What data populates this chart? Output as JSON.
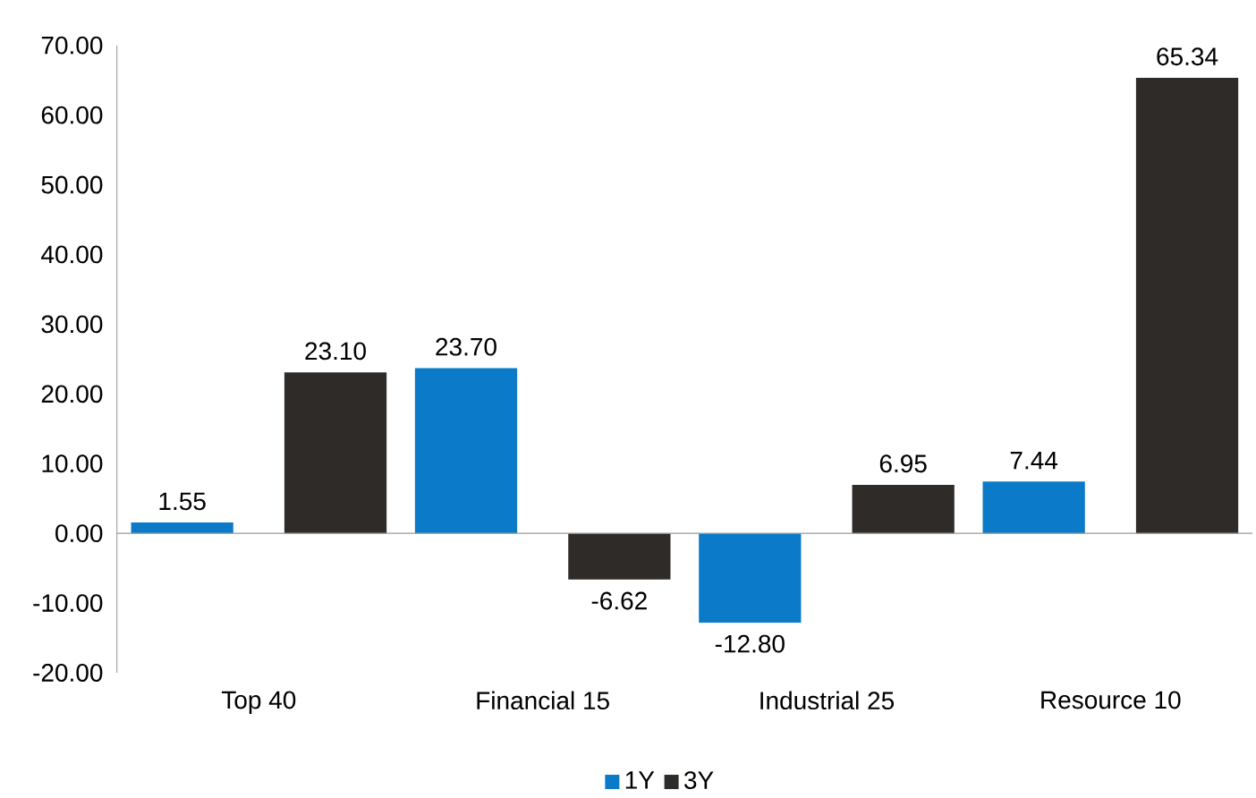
{
  "chart_data": {
    "type": "bar",
    "categories": [
      "Top 40",
      "Financial 15",
      "Industrial 25",
      "Resource 10"
    ],
    "series": [
      {
        "name": "1Y",
        "color": "#0b7ac8",
        "values": [
          1.55,
          23.7,
          -12.8,
          7.44
        ],
        "value_labels": [
          "1.55",
          "23.70",
          "-12.80",
          "7.44"
        ]
      },
      {
        "name": "3Y",
        "color": "#2e2b29",
        "values": [
          23.1,
          -6.62,
          6.95,
          65.34
        ],
        "value_labels": [
          "23.10",
          "-6.62",
          "6.95",
          "65.34"
        ]
      }
    ],
    "ylim": [
      -20,
      70
    ],
    "yticks": [
      {
        "value": -20,
        "label": "-20.00"
      },
      {
        "value": -10,
        "label": "-10.00"
      },
      {
        "value": 0,
        "label": "0.00"
      },
      {
        "value": 10,
        "label": "10.00"
      },
      {
        "value": 20,
        "label": "20.00"
      },
      {
        "value": 30,
        "label": "30.00"
      },
      {
        "value": 40,
        "label": "40.00"
      },
      {
        "value": 50,
        "label": "50.00"
      },
      {
        "value": 60,
        "label": "60.00"
      },
      {
        "value": 70,
        "label": "70.00"
      }
    ],
    "legend": "bottom"
  }
}
